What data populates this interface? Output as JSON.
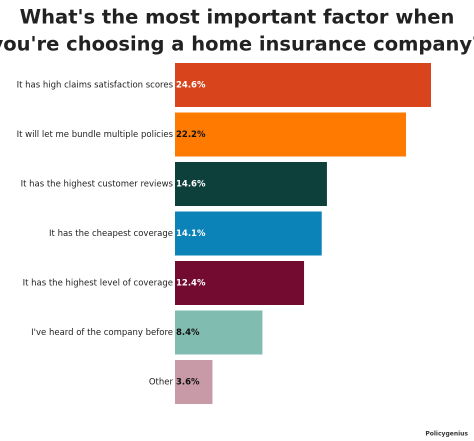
{
  "chart_data": {
    "type": "bar",
    "orientation": "horizontal",
    "title": [
      "What's the most important factor when",
      "you're choosing a home insurance company?"
    ],
    "categories": [
      "It has high claims satisfaction scores",
      "It will let me bundle multiple policies",
      "It has the highest customer reviews",
      "It has the cheapest coverage",
      "It has the highest level of coverage",
      "I've heard of the company before",
      "Other"
    ],
    "values": [
      24.6,
      22.2,
      14.6,
      14.1,
      12.4,
      8.4,
      3.6
    ],
    "value_labels": [
      "24.6%",
      "22.2%",
      "14.6%",
      "14.1%",
      "12.4%",
      "8.4%",
      "3.6%"
    ],
    "colors": [
      "#d8441b",
      "#ff7a00",
      "#0d403b",
      "#0b82b8",
      "#730a2f",
      "#80bcb0",
      "#c89aa7"
    ],
    "credit": "Policygenius"
  }
}
